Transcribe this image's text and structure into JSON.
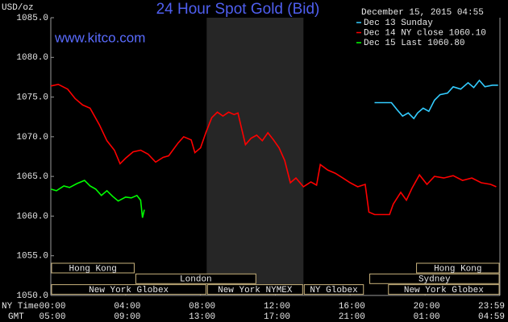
{
  "chart_data": {
    "type": "line",
    "title": "24 Hour Spot Gold (Bid)",
    "watermark": "www.kitco.com",
    "y_label": "USD/oz",
    "timestamp": "December 15, 2015 04:55",
    "xlim": [
      0,
      24
    ],
    "ylim": [
      1050,
      1085
    ],
    "yticks": [
      {
        "value": 1050,
        "label": "1050.0"
      },
      {
        "value": 1055,
        "label": "1055.0"
      },
      {
        "value": 1060,
        "label": "1060.0"
      },
      {
        "value": 1065,
        "label": "1065.0"
      },
      {
        "value": 1070,
        "label": "1070.0"
      },
      {
        "value": 1075,
        "label": "1075.0"
      },
      {
        "value": 1080,
        "label": "1080.0"
      },
      {
        "value": 1085,
        "label": "1085.0"
      }
    ],
    "x_row_label": "NY Time",
    "xticks": [
      {
        "value": 0,
        "label": "00:00"
      },
      {
        "value": 4,
        "label": "04:00"
      },
      {
        "value": 8,
        "label": "08:00"
      },
      {
        "value": 12,
        "label": "12:00"
      },
      {
        "value": 16,
        "label": "16:00"
      },
      {
        "value": 20,
        "label": "20:00"
      },
      {
        "value": 23.98,
        "label": "23:59"
      }
    ],
    "x2_row_label": "GMT",
    "x2ticks": [
      {
        "value": 0,
        "label": "05:00"
      },
      {
        "value": 4,
        "label": "09:00"
      },
      {
        "value": 8,
        "label": "13:00"
      },
      {
        "value": 12,
        "label": "17:00"
      },
      {
        "value": 16,
        "label": "21:00"
      },
      {
        "value": 20,
        "label": "01:00"
      },
      {
        "value": 23.98,
        "label": "04:59"
      }
    ],
    "shade": [
      8.33,
      13.5
    ],
    "session_rows": [
      [
        {
          "label": "Hong Kong",
          "start": 0,
          "end": 4.5
        },
        {
          "label": "Hong Kong",
          "start": 19.5,
          "end": 24
        }
      ],
      [
        {
          "label": "London",
          "start": 4.5,
          "end": 11
        },
        {
          "label": "Sydney",
          "start": 17,
          "end": 24
        }
      ],
      [
        {
          "label": "New York Globex",
          "start": 0,
          "end": 8.33
        },
        {
          "label": "New York NYMEX",
          "start": 8.33,
          "end": 13.5
        },
        {
          "label": "NY Globex",
          "start": 13.5,
          "end": 16.75
        },
        {
          "label": "New York Globex",
          "start": 18,
          "end": 24
        }
      ]
    ],
    "series": [
      {
        "name": "Dec 13 Sunday",
        "color": "#33ccff",
        "x": [
          17.3,
          17.8,
          18.2,
          18.5,
          18.8,
          19.1,
          19.4,
          19.6,
          19.9,
          20.2,
          20.5,
          20.8,
          21.2,
          21.5,
          21.9,
          22.3,
          22.6,
          22.9,
          23.2,
          23.6,
          23.9
        ],
        "values": [
          1074.3,
          1074.3,
          1074.3,
          1073.4,
          1072.6,
          1073.0,
          1072.3,
          1073.0,
          1073.6,
          1073.2,
          1074.6,
          1075.3,
          1075.5,
          1076.3,
          1076.0,
          1076.8,
          1076.2,
          1077.1,
          1076.3,
          1076.5,
          1076.5
        ]
      },
      {
        "name": "Dec 14 NY close 1060.10",
        "color": "#ff0000",
        "x": [
          0,
          0.4,
          0.9,
          1.3,
          1.7,
          2.1,
          2.6,
          3.0,
          3.4,
          3.7,
          4.0,
          4.4,
          4.8,
          5.2,
          5.6,
          6.0,
          6.3,
          6.8,
          7.1,
          7.5,
          7.7,
          8.0,
          8.3,
          8.6,
          8.9,
          9.2,
          9.5,
          9.8,
          10.0,
          10.2,
          10.4,
          10.7,
          11.0,
          11.3,
          11.6,
          11.9,
          12.2,
          12.5,
          12.8,
          13.1,
          13.5,
          13.9,
          14.2,
          14.4,
          14.8,
          15.2,
          15.6,
          16.0,
          16.4,
          16.8,
          17.0,
          17.3,
          18.1,
          18.3,
          18.7,
          19.0,
          19.3,
          19.7,
          20.1,
          20.5,
          21.0,
          21.5,
          22.0,
          22.5,
          23.0,
          23.5,
          23.8
        ],
        "values": [
          1076.4,
          1076.6,
          1076.0,
          1074.8,
          1074.0,
          1073.6,
          1071.5,
          1069.5,
          1068.3,
          1066.6,
          1067.3,
          1068.1,
          1068.3,
          1067.8,
          1066.8,
          1067.4,
          1067.6,
          1069.2,
          1070.0,
          1069.6,
          1068.0,
          1068.6,
          1070.6,
          1072.4,
          1073.1,
          1072.6,
          1073.1,
          1072.8,
          1073.0,
          1071.0,
          1069.0,
          1069.8,
          1070.2,
          1069.5,
          1070.5,
          1069.6,
          1068.6,
          1067.0,
          1064.2,
          1064.8,
          1063.7,
          1064.3,
          1063.9,
          1066.5,
          1065.8,
          1065.4,
          1064.8,
          1064.2,
          1063.7,
          1064.0,
          1060.5,
          1060.2,
          1060.2,
          1061.5,
          1063.0,
          1062.0,
          1063.5,
          1065.2,
          1064.0,
          1065.0,
          1064.8,
          1065.1,
          1064.5,
          1064.8,
          1064.2,
          1064.0,
          1063.7
        ]
      },
      {
        "name": "Dec 15 Last 1060.80",
        "color": "#00ff00",
        "x": [
          0,
          0.3,
          0.7,
          1.0,
          1.4,
          1.8,
          2.1,
          2.4,
          2.7,
          3.0,
          3.3,
          3.6,
          4.0,
          4.3,
          4.6,
          4.8,
          4.9,
          5.0
        ],
        "values": [
          1063.4,
          1063.2,
          1063.8,
          1063.6,
          1064.1,
          1064.5,
          1063.8,
          1063.4,
          1062.6,
          1063.2,
          1062.5,
          1061.9,
          1062.4,
          1062.3,
          1062.6,
          1062.0,
          1059.8,
          1060.8
        ]
      }
    ]
  }
}
